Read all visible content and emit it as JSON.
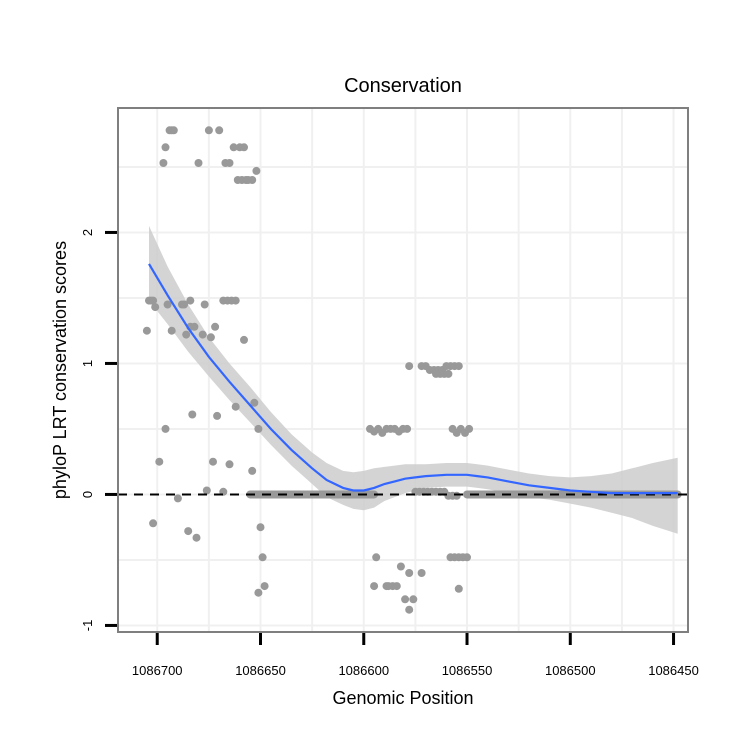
{
  "chart_data": {
    "type": "scatter",
    "title": "Conservation",
    "xlabel": "Genomic Position",
    "ylabel": "phyloP LRT conservation scores",
    "x_reversed": true,
    "xlim": [
      1086719,
      1086443
    ],
    "ylim": [
      -1.05,
      2.95
    ],
    "x_ticks": [
      1086700,
      1086650,
      1086600,
      1086550,
      1086500,
      1086450
    ],
    "x_tick_labels": [
      "1086700",
      "1086650",
      "1086600",
      "1086550",
      "1086500",
      "1086450"
    ],
    "y_ticks": [
      -1,
      0,
      1,
      2
    ],
    "y_tick_labels": [
      "-1",
      "0",
      "1",
      "2"
    ],
    "grid": true,
    "reference_line": {
      "y": 0,
      "style": "dashed"
    },
    "colors": {
      "points": "#999999",
      "smooth_line": "#3366ff",
      "ribbon": "#cccccc",
      "panel_border": "#7f7f7f",
      "grid": "#f0f0f0",
      "reference": "#000000"
    },
    "points": [
      [
        1086704,
        1.48
      ],
      [
        1086703,
        1.48
      ],
      [
        1086702,
        1.48
      ],
      [
        1086701,
        1.43
      ],
      [
        1086705,
        1.25
      ],
      [
        1086702,
        -0.22
      ],
      [
        1086699,
        0.25
      ],
      [
        1086697,
        2.53
      ],
      [
        1086696,
        2.65
      ],
      [
        1086694,
        2.78
      ],
      [
        1086693,
        2.78
      ],
      [
        1086692,
        2.78
      ],
      [
        1086695,
        1.45
      ],
      [
        1086693,
        1.25
      ],
      [
        1086696,
        0.5
      ],
      [
        1086690,
        -0.03
      ],
      [
        1086688,
        1.45
      ],
      [
        1086687,
        1.45
      ],
      [
        1086686,
        1.22
      ],
      [
        1086684,
        1.48
      ],
      [
        1086682,
        1.28
      ],
      [
        1086684,
        1.28
      ],
      [
        1086681,
        -0.33
      ],
      [
        1086683,
        0.61
      ],
      [
        1086685,
        -0.28
      ],
      [
        1086680,
        2.53
      ],
      [
        1086678,
        1.22
      ],
      [
        1086677,
        1.45
      ],
      [
        1086676,
        0.03
      ],
      [
        1086675,
        2.78
      ],
      [
        1086674,
        1.2
      ],
      [
        1086672,
        1.28
      ],
      [
        1086670,
        2.78
      ],
      [
        1086673,
        0.25
      ],
      [
        1086671,
        0.6
      ],
      [
        1086668,
        0.02
      ],
      [
        1086668,
        1.48
      ],
      [
        1086667,
        2.53
      ],
      [
        1086665,
        2.53
      ],
      [
        1086666,
        1.48
      ],
      [
        1086664,
        1.48
      ],
      [
        1086662,
        1.48
      ],
      [
        1086665,
        0.23
      ],
      [
        1086662,
        0.67
      ],
      [
        1086661,
        2.4
      ],
      [
        1086663,
        2.65
      ],
      [
        1086660,
        2.65
      ],
      [
        1086658,
        2.65
      ],
      [
        1086659,
        2.4
      ],
      [
        1086657,
        2.4
      ],
      [
        1086656,
        2.4
      ],
      [
        1086654,
        2.4
      ],
      [
        1086658,
        1.18
      ],
      [
        1086652,
        2.47
      ],
      [
        1086653,
        0.7
      ],
      [
        1086651,
        0.5
      ],
      [
        1086650,
        -0.25
      ],
      [
        1086649,
        -0.48
      ],
      [
        1086648,
        -0.7
      ],
      [
        1086651,
        -0.75
      ],
      [
        1086654,
        0.18
      ],
      [
        1086597,
        0.5
      ],
      [
        1086595,
        0.48
      ],
      [
        1086593,
        0.5
      ],
      [
        1086591,
        0.47
      ],
      [
        1086589,
        0.5
      ],
      [
        1086587,
        0.5
      ],
      [
        1086585,
        0.5
      ],
      [
        1086583,
        0.48
      ],
      [
        1086581,
        0.5
      ],
      [
        1086579,
        0.5
      ],
      [
        1086594,
        -0.48
      ],
      [
        1086589,
        -0.7
      ],
      [
        1086588,
        -0.7
      ],
      [
        1086586,
        -0.7
      ],
      [
        1086584,
        -0.7
      ],
      [
        1086595,
        -0.7
      ],
      [
        1086582,
        -0.55
      ],
      [
        1086580,
        -0.8
      ],
      [
        1086578,
        -0.88
      ],
      [
        1086576,
        -0.8
      ],
      [
        1086578,
        -0.6
      ],
      [
        1086572,
        -0.6
      ],
      [
        1086578,
        0.98
      ],
      [
        1086572,
        0.98
      ],
      [
        1086570,
        0.98
      ],
      [
        1086568,
        0.95
      ],
      [
        1086566,
        0.95
      ],
      [
        1086564,
        0.95
      ],
      [
        1086562,
        0.95
      ],
      [
        1086560,
        0.98
      ],
      [
        1086558,
        0.98
      ],
      [
        1086556,
        0.98
      ],
      [
        1086554,
        0.98
      ],
      [
        1086565,
        0.92
      ],
      [
        1086563,
        0.92
      ],
      [
        1086561,
        0.92
      ],
      [
        1086559,
        0.92
      ],
      [
        1086575,
        0.02
      ],
      [
        1086573,
        0.02
      ],
      [
        1086571,
        0.02
      ],
      [
        1086569,
        0.02
      ],
      [
        1086567,
        0.02
      ],
      [
        1086565,
        0.02
      ],
      [
        1086563,
        0.02
      ],
      [
        1086561,
        0.02
      ],
      [
        1086559,
        -0.01
      ],
      [
        1086557,
        -0.01
      ],
      [
        1086555,
        -0.01
      ],
      [
        1086557,
        0.5
      ],
      [
        1086555,
        0.47
      ],
      [
        1086553,
        0.5
      ],
      [
        1086551,
        0.47
      ],
      [
        1086549,
        0.5
      ],
      [
        1086550,
        -0.48
      ],
      [
        1086552,
        -0.48
      ],
      [
        1086556,
        -0.48
      ],
      [
        1086554,
        -0.48
      ],
      [
        1086558,
        -0.48
      ],
      [
        1086554,
        -0.72
      ]
    ],
    "flat_segments": [
      {
        "x_from": 1086655,
        "x_to": 1086595,
        "y": 0
      },
      {
        "x_from": 1086550,
        "x_to": 1086448,
        "y": 0
      }
    ],
    "smooth": {
      "x": [
        1086704,
        1086695,
        1086685,
        1086675,
        1086665,
        1086655,
        1086645,
        1086635,
        1086625,
        1086618,
        1086610,
        1086605,
        1086600,
        1086595,
        1086590,
        1086585,
        1086580,
        1086575,
        1086570,
        1086560,
        1086550,
        1086545,
        1086540,
        1086530,
        1086520,
        1086510,
        1086500,
        1086490,
        1086480,
        1086470,
        1086460,
        1086448
      ],
      "y": [
        1.76,
        1.52,
        1.27,
        1.05,
        0.86,
        0.68,
        0.5,
        0.34,
        0.2,
        0.11,
        0.05,
        0.03,
        0.03,
        0.05,
        0.08,
        0.1,
        0.12,
        0.13,
        0.14,
        0.15,
        0.15,
        0.14,
        0.13,
        0.1,
        0.07,
        0.05,
        0.03,
        0.02,
        0.01,
        0.01,
        0.01,
        0.01
      ],
      "lower": [
        1.48,
        1.3,
        1.09,
        0.9,
        0.72,
        0.55,
        0.38,
        0.22,
        0.08,
        -0.02,
        -0.08,
        -0.11,
        -0.12,
        -0.1,
        -0.05,
        -0.02,
        0.01,
        0.03,
        0.05,
        0.06,
        0.06,
        0.05,
        0.04,
        0.01,
        -0.02,
        -0.04,
        -0.07,
        -0.1,
        -0.14,
        -0.18,
        -0.24,
        -0.3
      ],
      "upper": [
        2.05,
        1.74,
        1.45,
        1.2,
        1.0,
        0.82,
        0.63,
        0.46,
        0.32,
        0.24,
        0.18,
        0.17,
        0.18,
        0.2,
        0.21,
        0.22,
        0.23,
        0.23,
        0.23,
        0.24,
        0.24,
        0.23,
        0.22,
        0.19,
        0.16,
        0.14,
        0.13,
        0.14,
        0.16,
        0.2,
        0.24,
        0.28
      ]
    }
  }
}
